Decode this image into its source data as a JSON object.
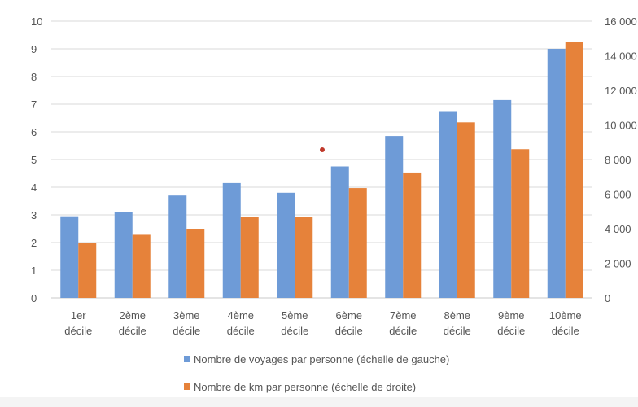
{
  "chart_data": {
    "type": "bar",
    "categories": [
      [
        "1er",
        "décile"
      ],
      [
        "2ème",
        "décile"
      ],
      [
        "3ème",
        "décile"
      ],
      [
        "4ème",
        "décile"
      ],
      [
        "5ème",
        "décile"
      ],
      [
        "6ème",
        "décile"
      ],
      [
        "7ème",
        "décile"
      ],
      [
        "8ème",
        "décile"
      ],
      [
        "9ème",
        "décile"
      ],
      [
        "10ème",
        "décile"
      ]
    ],
    "series": [
      {
        "name": "Nombre de voyages par personne (échelle de gauche)",
        "axis": "left",
        "color": "#6e9bd7",
        "values": [
          2.95,
          3.1,
          3.7,
          4.15,
          3.8,
          4.75,
          5.85,
          6.75,
          7.15,
          9.0
        ]
      },
      {
        "name": "Nombre de km par personne (échelle de droite)",
        "axis": "right",
        "color": "#e6823a",
        "values": [
          3200,
          3650,
          4000,
          4700,
          4700,
          6350,
          7250,
          10150,
          8600,
          14800
        ]
      }
    ],
    "y_left": {
      "ylim": [
        0,
        10
      ],
      "ticks": [
        0,
        1,
        2,
        3,
        4,
        5,
        6,
        7,
        8,
        9,
        10
      ],
      "tick_labels": [
        "0",
        "1",
        "2",
        "3",
        "4",
        "5",
        "6",
        "7",
        "8",
        "9",
        "10"
      ]
    },
    "y_right": {
      "ylim": [
        0,
        16000
      ],
      "ticks": [
        0,
        2000,
        4000,
        6000,
        8000,
        10000,
        12000,
        14000,
        16000
      ],
      "tick_labels": [
        "0",
        "2 000",
        "4 000",
        "6 000",
        "8 000",
        "10 000",
        "12 000",
        "14 000",
        "16 000"
      ]
    },
    "grid": true,
    "legend_position": "bottom"
  }
}
